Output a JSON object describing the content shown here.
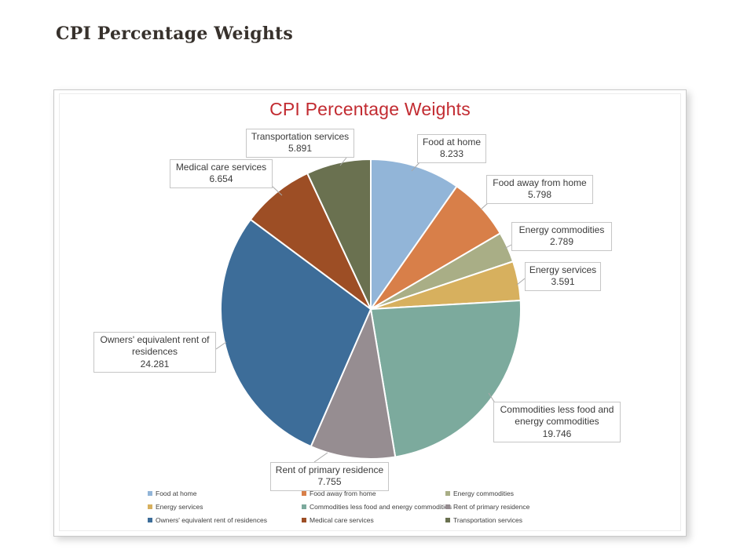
{
  "page": {
    "heading": "CPI Percentage Weights"
  },
  "chart": {
    "title": "CPI Percentage Weights",
    "title_color": "#c22b31",
    "background": "#ffffff",
    "panel_border_color": "#c9c9c9",
    "label_box_border_color": "#c6c6c6",
    "leader_line_color": "#a8a8a8"
  },
  "chart_data": {
    "type": "pie",
    "title": "CPI Percentage Weights",
    "categories": [
      "Food at home",
      "Food away from home",
      "Energy commodities",
      "Energy services",
      "Commodities less food and energy commodities",
      "Rent of primary residence",
      "Owners' equivalent rent of residences",
      "Medical care services",
      "Transportation services"
    ],
    "values": [
      8.233,
      5.798,
      2.789,
      3.591,
      19.746,
      7.755,
      24.281,
      6.654,
      5.891
    ],
    "colors": [
      "#92b5d8",
      "#d87f49",
      "#a9ae86",
      "#d7b05e",
      "#7caa9d",
      "#968d91",
      "#3d6d99",
      "#9d4e25",
      "#6a7150"
    ],
    "total": 84.738,
    "start_angle_deg": 0,
    "direction": "clockwise",
    "data_labels": "category name and value with 3 decimals in white callout boxes",
    "value_decimals": 3,
    "legend_position": "bottom",
    "legend_rows": 3,
    "legend_columns": 3
  }
}
